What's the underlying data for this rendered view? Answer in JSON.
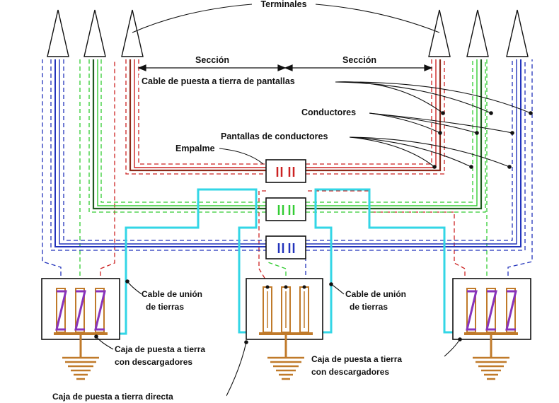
{
  "labels": {
    "terminales": "Terminales",
    "seccion_1": "Sección",
    "seccion_2": "Sección",
    "cable_pantallas": "Cable de puesta a tierra de pantallas",
    "conductores": "Conductores",
    "pantallas_conductores": "Pantallas de conductores",
    "empalme": "Empalme",
    "union_tierras_left_1": "Cable de unión",
    "union_tierras_left_2": "de tierras",
    "union_tierras_mid_1": "Cable de unión",
    "union_tierras_mid_2": "de tierras",
    "caja_desc_left_1": "Caja de puesta a tierra",
    "caja_desc_left_2": "con descargadores",
    "caja_desc_right_1": "Caja de puesta a tierra",
    "caja_desc_right_2": "con descargadores",
    "caja_directa": "Caja de puesta a tierra directa"
  },
  "colors": {
    "phase_red": "#cc2222",
    "phase_green": "#33cc33",
    "phase_blue": "#2233bb",
    "screen_red": "#8b2a1a",
    "screen_green": "#1f5a1f",
    "bonding": "#33d6e6",
    "ground": "#c07a2a",
    "arrester": "#8833bb",
    "outline": "#111111"
  }
}
